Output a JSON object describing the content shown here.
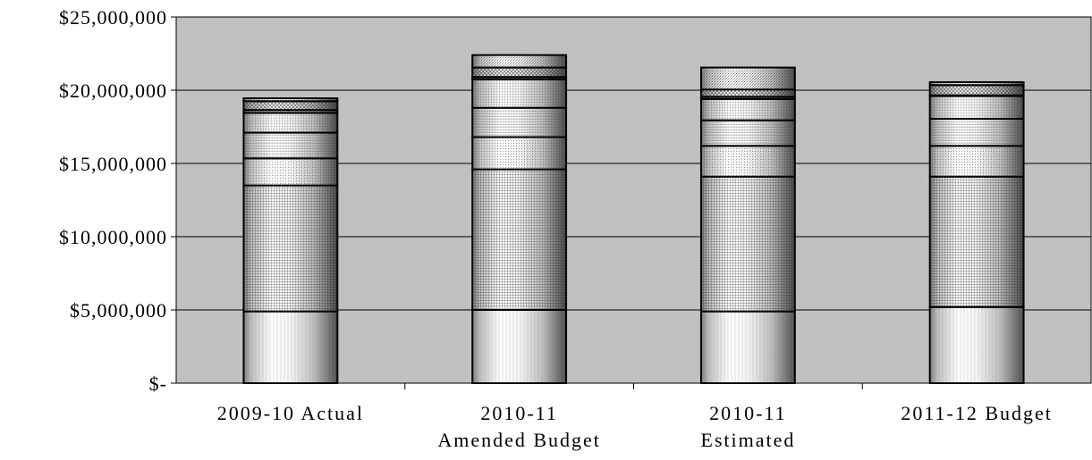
{
  "chart_data": {
    "type": "bar",
    "stacked": true,
    "title": "",
    "xlabel": "",
    "ylabel": "",
    "ylim": [
      0,
      25000000
    ],
    "ytick_values": [
      0,
      5000000,
      10000000,
      15000000,
      20000000,
      25000000
    ],
    "ytick_labels": [
      "$-",
      "$5,000,000",
      "$10,000,000",
      "$15,000,000",
      "$20,000,000",
      "$25,000,000"
    ],
    "grid": true,
    "legend": "none",
    "plot_background": "#c0c0c0",
    "categories": [
      [
        "2009-10  Actual"
      ],
      [
        "2010-11",
        "Amended  Budget"
      ],
      [
        "2010-11",
        "Estimated"
      ],
      [
        "2011-12 Budget"
      ]
    ],
    "series": [
      {
        "values": [
          4900000,
          5000000,
          4900000,
          5200000
        ]
      },
      {
        "values": [
          8600000,
          9600000,
          9200000,
          8900000
        ]
      },
      {
        "values": [
          1850000,
          2200000,
          2100000,
          2100000
        ]
      },
      {
        "values": [
          1750000,
          2000000,
          1750000,
          1850000
        ]
      },
      {
        "values": [
          1350000,
          1950000,
          1450000,
          1550000
        ]
      },
      {
        "values": [
          200000,
          150000,
          150000,
          50000
        ]
      },
      {
        "values": [
          600000,
          650000,
          500000,
          700000
        ]
      },
      {
        "values": [
          200000,
          850000,
          1500000,
          200000
        ]
      }
    ]
  }
}
